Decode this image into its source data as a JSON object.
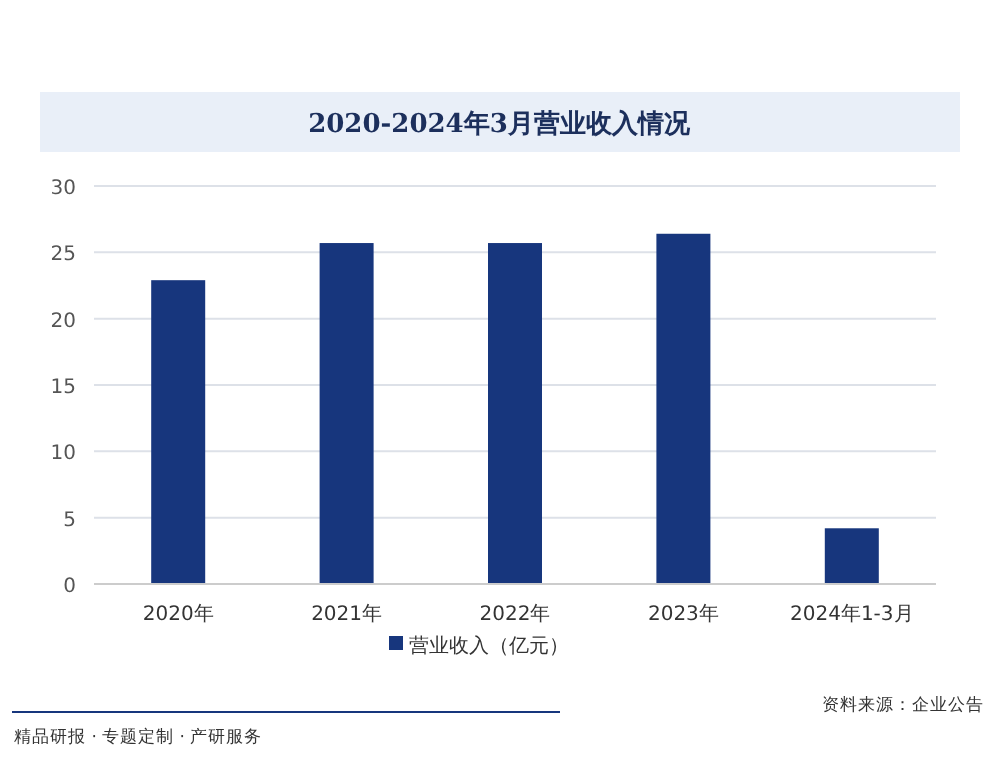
{
  "chart_data": {
    "type": "bar",
    "title": "2020-2024年3月营业收入情况",
    "categories": [
      "2020年",
      "2021年",
      "2022年",
      "2023年",
      "2024年1-3月"
    ],
    "series": [
      {
        "name": "营业收入（亿元）",
        "color": "#17367d",
        "values": [
          22.9,
          25.7,
          25.7,
          26.4,
          4.2
        ]
      }
    ],
    "ylim": [
      0,
      30
    ],
    "yticks": [
      0,
      5,
      10,
      15,
      20,
      25,
      30
    ],
    "grid": "y",
    "legend": "bottom",
    "annotations": [
      "精品研报 · 专题定制 · 产研服务",
      "资料来源：企业公告"
    ]
  }
}
